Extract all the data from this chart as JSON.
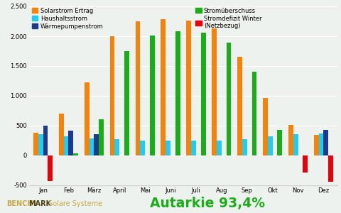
{
  "months": [
    "Jan",
    "Feb",
    "März",
    "April",
    "Mai",
    "Juni",
    "Juli",
    "Aug",
    "Sep",
    "Okt",
    "Nov",
    "Dez"
  ],
  "solarstrom": [
    380,
    700,
    1230,
    2000,
    2250,
    2280,
    2260,
    2130,
    1660,
    960,
    510,
    350
  ],
  "haushaltsstrom": [
    360,
    320,
    280,
    270,
    250,
    250,
    245,
    255,
    270,
    320,
    360,
    370
  ],
  "waermepumpenstrom": [
    500,
    420,
    360,
    0,
    0,
    0,
    0,
    0,
    0,
    0,
    0,
    430
  ],
  "stromueberschuss": [
    0,
    30,
    610,
    1750,
    2010,
    2080,
    2060,
    1890,
    1400,
    430,
    0,
    0
  ],
  "stromdefizit": [
    -430,
    0,
    0,
    0,
    0,
    0,
    0,
    0,
    0,
    0,
    -290,
    -440
  ],
  "ylim": [
    -500,
    2500
  ],
  "yticks": [
    -500,
    0,
    500,
    1000,
    1500,
    2000,
    2500
  ],
  "color_solar": "#F5820A",
  "color_haushalt": "#22CCEE",
  "color_waerme": "#1E3A8A",
  "color_ueberschuss": "#1AAD19",
  "color_defizit": "#E8000A",
  "title_color": "#1E2A5E",
  "bg_color": "#EEF2EE",
  "grid_color": "#FFFFFF",
  "autarkie_text": "Autarkie 93,4%",
  "autarkie_color": "#1AAD19",
  "benchmark_bench": "BENCH",
  "benchmark_mark": "MARK",
  "benchmark_rest": " Solare Systeme",
  "bench_color": "#C8A84B",
  "mark_color": "#4A3A10",
  "legend_labels_left": [
    "Solarstrom Ertrag",
    "Haushaltsstrom",
    "Wärmepumpenstrom"
  ],
  "legend_labels_right": [
    "Stromüberschuss",
    "Stromdefizit Winter\n(Netzbezug)"
  ]
}
